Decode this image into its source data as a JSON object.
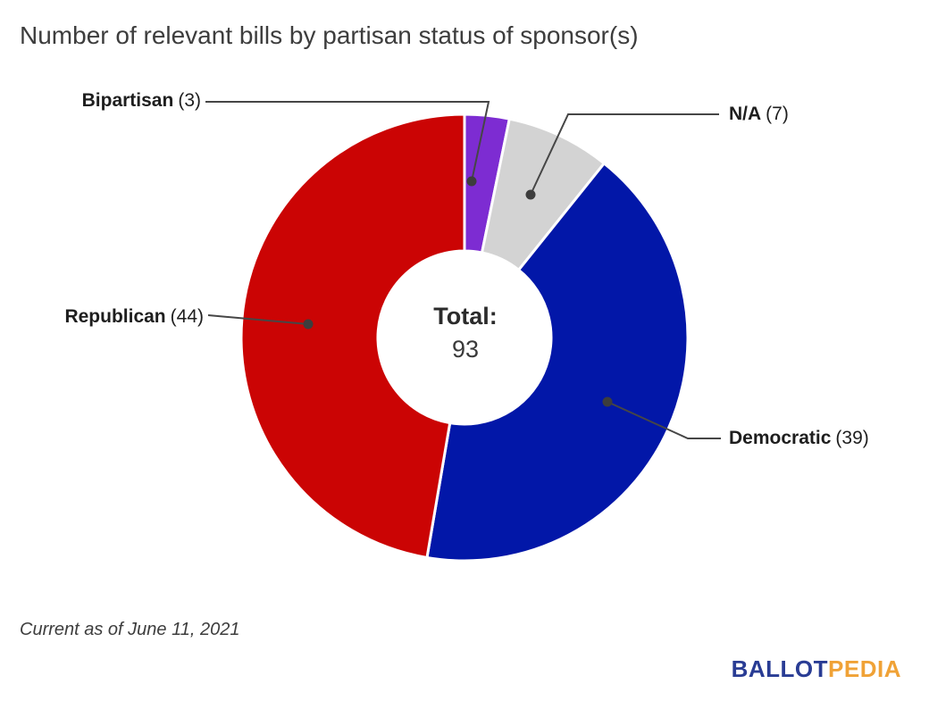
{
  "page": {
    "footnote": "Current as of June 11, 2021",
    "logo": {
      "part1": "BALLOT",
      "part2": "PEDIA",
      "part1_color": "#293c94",
      "part2_color": "#f0a236"
    }
  },
  "chart_data": {
    "type": "pie",
    "subtype": "donut",
    "title": "Number of relevant bills by partisan status of sponsor(s)",
    "center_label": "Total:",
    "total": 93,
    "direction": "clockwise",
    "start_angle_deg": 0,
    "legend_position": "callout-labels",
    "segments": [
      {
        "label": "Bipartisan",
        "value": 3,
        "count_text": "(3)",
        "color": "#7d2cd2"
      },
      {
        "label": "N/A",
        "value": 7,
        "count_text": "(7)",
        "color": "#d3d3d3"
      },
      {
        "label": "Democratic",
        "value": 39,
        "count_text": "(39)",
        "color": "#0217a8"
      },
      {
        "label": "Republican",
        "value": 44,
        "count_text": "(44)",
        "color": "#cb0404"
      }
    ],
    "callout_color": "#464646"
  }
}
